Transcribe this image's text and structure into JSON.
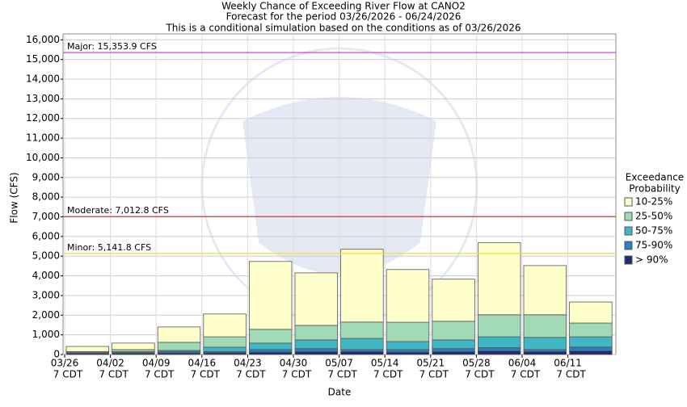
{
  "chart_data": {
    "type": "bar",
    "stacked": true,
    "title": "Weekly Chance of Exceeding River Flow at CANO2",
    "subtitle": "Forecast for the period 03/26/2026 - 06/24/2026",
    "note": "This is a conditional simulation based on the conditions as of 03/26/2026",
    "x_label": "Date",
    "y_label": "Flow (CFS)",
    "categories": [
      "03/26",
      "04/02",
      "04/09",
      "04/16",
      "04/23",
      "04/30",
      "05/07",
      "05/14",
      "05/21",
      "05/28",
      "06/04",
      "06/11"
    ],
    "category_sublabels": [
      "7 CDT",
      "7 CDT",
      "7 CDT",
      "7 CDT",
      "7 CDT",
      "7 CDT",
      "7 CDT",
      "7 CDT",
      "7 CDT",
      "7 CDT",
      "7 CDT",
      "7 CDT"
    ],
    "legend_title": [
      "Exceedance",
      "Probability"
    ],
    "series": [
      {
        "name": "> 90%",
        "color": "#1f2a78",
        "values": [
          60,
          70,
          80,
          90,
          120,
          150,
          150,
          120,
          150,
          180,
          150,
          180
        ]
      },
      {
        "name": "75-90%",
        "color": "#2c7fb8",
        "values": [
          20,
          30,
          70,
          60,
          130,
          150,
          100,
          130,
          150,
          170,
          100,
          200
        ]
      },
      {
        "name": "50-75%",
        "color": "#41b6c4",
        "values": [
          20,
          50,
          60,
          220,
          330,
          440,
          570,
          410,
          440,
          550,
          620,
          520
        ]
      },
      {
        "name": "25-50%",
        "color": "#a1dab4",
        "values": [
          50,
          100,
          410,
          530,
          700,
          740,
          830,
          980,
          950,
          1120,
          1150,
          700
        ]
      },
      {
        "name": "10-25%",
        "color": "#ffffcc",
        "values": [
          260,
          330,
          780,
          1160,
          3450,
          2670,
          3700,
          2680,
          2140,
          3660,
          2500,
          1070
        ]
      }
    ],
    "thresholds": [
      {
        "label": "Major: 15,353.9 CFS",
        "value": 15353.9,
        "color": "#cc33cc"
      },
      {
        "label": "Moderate: 7,012.8 CFS",
        "value": 7012.8,
        "color": "#dd2222"
      },
      {
        "label": "Minor: 5,141.8 CFS",
        "value": 5141.8,
        "color": "#eedd44"
      }
    ],
    "ylim": [
      0,
      16300
    ],
    "yticks": [
      0,
      {
        "value": 1000,
        "label": "1,000"
      },
      {
        "value": 2000,
        "label": "2,000"
      },
      {
        "value": 3000,
        "label": "3,000"
      },
      {
        "value": 4000,
        "label": "4,000"
      },
      {
        "value": 5000,
        "label": "5,000"
      },
      {
        "value": 6000,
        "label": "6,000"
      },
      {
        "value": 7000,
        "label": "7,000"
      },
      {
        "value": 8000,
        "label": "8,000"
      },
      {
        "value": 9000,
        "label": "9,000"
      },
      {
        "value": 10000,
        "label": "10,000"
      },
      {
        "value": 11000,
        "label": "11,000"
      },
      {
        "value": 12000,
        "label": "12,000"
      },
      {
        "value": 13000,
        "label": "13,000"
      },
      {
        "value": 14000,
        "label": "14,000"
      },
      {
        "value": 15000,
        "label": "15,000"
      },
      {
        "value": 16000,
        "label": "16,000"
      }
    ],
    "grid": true
  }
}
